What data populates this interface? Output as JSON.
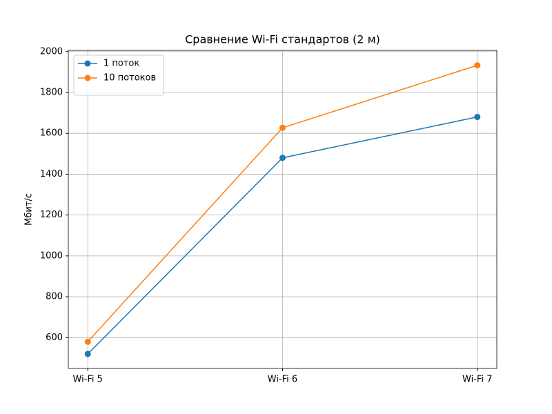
{
  "chart_data": {
    "type": "line",
    "title": "Сравнение Wi-Fi стандартов (2 м)",
    "y_label": "Мбит/с",
    "categories": [
      "Wi-Fi 5",
      "Wi-Fi 6",
      "Wi-Fi 7"
    ],
    "series": [
      {
        "name": "1 поток",
        "color": "#1f77b4",
        "values": [
          520,
          1480,
          1680
        ]
      },
      {
        "name": "10 потоков",
        "color": "#ff7f0e",
        "values": [
          580,
          1627,
          1933
        ]
      }
    ],
    "ylim": [
      449,
      2006
    ],
    "yticks": [
      600,
      800,
      1000,
      1200,
      1400,
      1600,
      1800,
      2000
    ],
    "grid": true,
    "legend": "upper-left"
  }
}
